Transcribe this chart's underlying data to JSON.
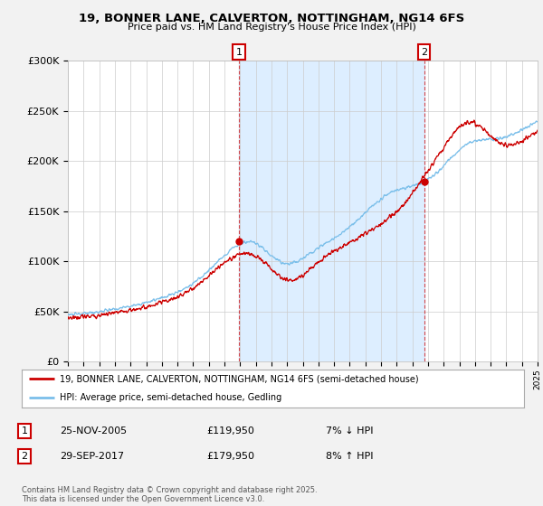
{
  "title": "19, BONNER LANE, CALVERTON, NOTTINGHAM, NG14 6FS",
  "subtitle": "Price paid vs. HM Land Registry's House Price Index (HPI)",
  "legend_line1": "19, BONNER LANE, CALVERTON, NOTTINGHAM, NG14 6FS (semi-detached house)",
  "legend_line2": "HPI: Average price, semi-detached house, Gedling",
  "ann1_date": "25-NOV-2005",
  "ann1_price": "£119,950",
  "ann1_pct": "7% ↓ HPI",
  "ann2_date": "29-SEP-2017",
  "ann2_price": "£179,950",
  "ann2_pct": "8% ↑ HPI",
  "footer": "Contains HM Land Registry data © Crown copyright and database right 2025.\nThis data is licensed under the Open Government Licence v3.0.",
  "hpi_color": "#7bbfea",
  "price_color": "#cc0000",
  "shade_color": "#ddeeff",
  "marker1_year": 2005.92,
  "marker2_year": 2017.75,
  "ylim": [
    0,
    300000
  ],
  "yticks": [
    0,
    50000,
    100000,
    150000,
    200000,
    250000,
    300000
  ],
  "background_color": "#f2f2f2",
  "plot_bg_color": "#ffffff"
}
